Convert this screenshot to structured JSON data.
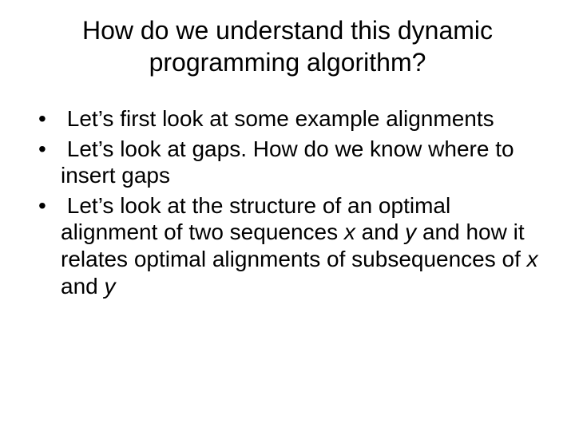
{
  "title": "How do we understand this dynamic programming algorithm?",
  "bullets": [
    {
      "text": "Let’s first look at some example alignments"
    },
    {
      "text": "Let’s look at gaps. How do we know where to insert gaps"
    },
    {
      "prefix": "Let’s look at the structure of an optimal alignment of two sequences ",
      "var1": "x",
      "mid1": " and ",
      "var2": "y",
      "mid2": " and how it relates optimal alignments of subsequences of ",
      "var3": "x",
      "mid3": " and ",
      "var4": "y"
    }
  ],
  "style": {
    "background_color": "#ffffff",
    "text_color": "#000000",
    "title_fontsize": 32,
    "body_fontsize": 28,
    "font_family": "Arial"
  }
}
